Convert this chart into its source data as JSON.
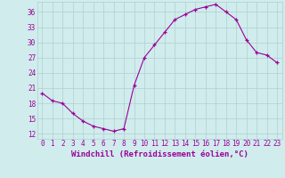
{
  "x": [
    0,
    1,
    2,
    3,
    4,
    5,
    6,
    7,
    8,
    9,
    10,
    11,
    12,
    13,
    14,
    15,
    16,
    17,
    18,
    19,
    20,
    21,
    22,
    23
  ],
  "y": [
    20,
    18.5,
    18,
    16,
    14.5,
    13.5,
    13,
    12.5,
    13,
    21.5,
    27,
    29.5,
    32,
    34.5,
    35.5,
    36.5,
    37,
    37.5,
    36,
    34.5,
    30.5,
    28,
    27.5,
    26
  ],
  "line_color": "#990099",
  "marker": "+",
  "bg_color": "#d0ecec",
  "grid_color": "#b0d0d0",
  "xlabel": "Windchill (Refroidissement éolien,°C)",
  "yticks": [
    12,
    15,
    18,
    21,
    24,
    27,
    30,
    33,
    36
  ],
  "xticks": [
    0,
    1,
    2,
    3,
    4,
    5,
    6,
    7,
    8,
    9,
    10,
    11,
    12,
    13,
    14,
    15,
    16,
    17,
    18,
    19,
    20,
    21,
    22,
    23
  ],
  "ylim": [
    11,
    38
  ],
  "xlim": [
    -0.5,
    23.5
  ],
  "tick_color": "#990099",
  "xlabel_color": "#990099",
  "tick_fontsize": 5.5,
  "xlabel_fontsize": 6.5
}
